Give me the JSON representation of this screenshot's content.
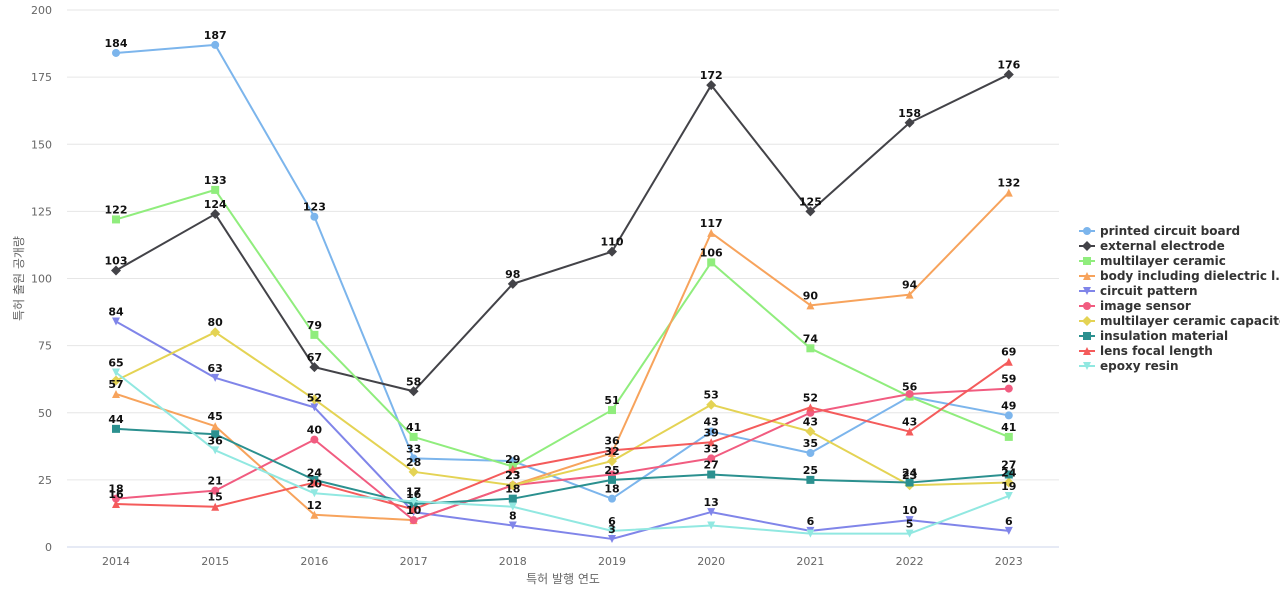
{
  "chart_data": {
    "type": "line",
    "title": "",
    "xlabel": "특허 발행 연도",
    "ylabel": "특허 출원 공개량",
    "x": [
      "2014",
      "2015",
      "2016",
      "2017",
      "2018",
      "2019",
      "2020",
      "2021",
      "2022",
      "2023"
    ],
    "ylim": [
      0,
      200
    ],
    "yticks": [
      0,
      25,
      50,
      75,
      100,
      125,
      150,
      175,
      200
    ],
    "grid": true,
    "legend_position": "right",
    "series": [
      {
        "name": "printed circuit board",
        "color": "#7cb5ec",
        "marker": "circle",
        "values": [
          184,
          187,
          123,
          33,
          32,
          18,
          43,
          35,
          56,
          49
        ]
      },
      {
        "name": "external electrode",
        "color": "#434348",
        "marker": "diamond",
        "values": [
          103,
          124,
          67,
          58,
          98,
          110,
          172,
          125,
          158,
          176
        ]
      },
      {
        "name": "multilayer ceramic",
        "color": "#90ed7d",
        "marker": "square",
        "values": [
          122,
          133,
          79,
          41,
          30,
          51,
          106,
          74,
          56,
          41
        ]
      },
      {
        "name": "body including dielectric l...",
        "color": "#f7a35c",
        "marker": "triangle",
        "values": [
          57,
          45,
          12,
          10,
          23,
          35,
          117,
          90,
          94,
          132
        ]
      },
      {
        "name": "circuit pattern",
        "color": "#8085e9",
        "marker": "triangle-down",
        "values": [
          84,
          63,
          52,
          13,
          8,
          3,
          13,
          6,
          10,
          6
        ]
      },
      {
        "name": "image sensor",
        "color": "#f15c80",
        "marker": "circle",
        "values": [
          18,
          21,
          40,
          10,
          23,
          27,
          33,
          50,
          57,
          59
        ]
      },
      {
        "name": "multilayer ceramic capacitor",
        "color": "#e4d354",
        "marker": "diamond",
        "values": [
          62,
          80,
          55,
          28,
          23,
          32,
          53,
          43,
          23,
          24
        ]
      },
      {
        "name": "insulation material",
        "color": "#2b908f",
        "marker": "square",
        "values": [
          44,
          42,
          25,
          16,
          18,
          25,
          27,
          25,
          24,
          27
        ]
      },
      {
        "name": "lens focal length",
        "color": "#f45b5b",
        "marker": "triangle",
        "values": [
          16,
          15,
          24,
          14,
          29,
          36,
          39,
          52,
          43,
          69
        ]
      },
      {
        "name": "epoxy resin",
        "color": "#91e8e1",
        "marker": "triangle-down",
        "values": [
          65,
          36,
          20,
          17,
          15,
          6,
          8,
          5,
          5,
          19
        ]
      }
    ],
    "data_labels": [
      {
        "series": 0,
        "points": [
          0,
          1,
          2,
          3,
          5,
          6,
          7,
          8,
          9
        ]
      },
      {
        "series": 1,
        "points": [
          0,
          1,
          2,
          3,
          4,
          5,
          6,
          7,
          8,
          9
        ]
      },
      {
        "series": 2,
        "points": [
          0,
          1,
          2,
          3,
          5,
          6,
          7,
          9
        ]
      },
      {
        "series": 3,
        "points": [
          0,
          1,
          2,
          6,
          7,
          8,
          9
        ]
      },
      {
        "series": 4,
        "points": [
          0,
          1,
          2,
          4,
          5,
          6,
          7,
          8,
          9
        ]
      },
      {
        "series": 5,
        "points": [
          0,
          1,
          2,
          3,
          4,
          6,
          9
        ]
      },
      {
        "series": 6,
        "points": [
          1,
          3,
          4,
          5,
          6,
          7,
          8,
          9
        ]
      },
      {
        "series": 7,
        "points": [
          0,
          3,
          4,
          5,
          6,
          7,
          8,
          9
        ]
      },
      {
        "series": 8,
        "points": [
          0,
          1,
          2,
          4,
          5,
          6,
          7,
          8,
          9
        ]
      },
      {
        "series": 9,
        "points": [
          0,
          1,
          2,
          3,
          5,
          8,
          9
        ]
      }
    ]
  }
}
